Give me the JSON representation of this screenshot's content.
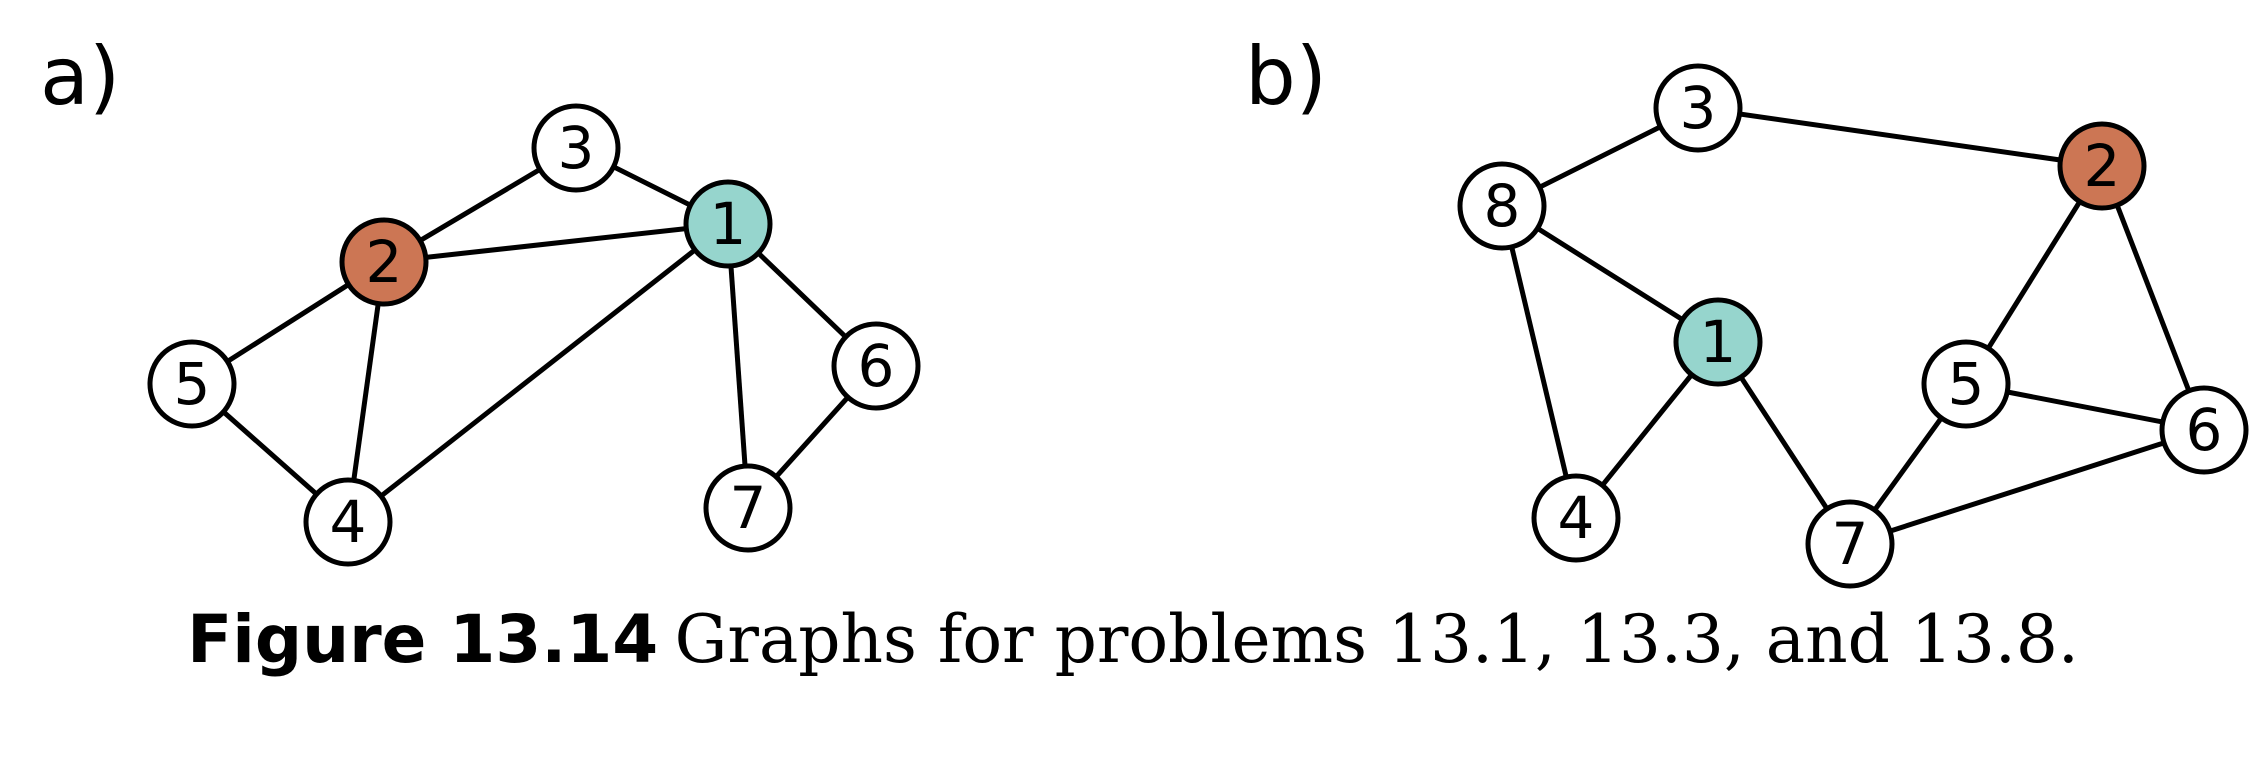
{
  "colors": {
    "teal": "#96d5cd",
    "orange": "#cc7654",
    "white": "#ffffff",
    "stroke": "#000000"
  },
  "panels": [
    {
      "label": "a)",
      "nodes": [
        {
          "id": "1",
          "label": "1",
          "color": "teal"
        },
        {
          "id": "2",
          "label": "2",
          "color": "orange"
        },
        {
          "id": "3",
          "label": "3",
          "color": "white"
        },
        {
          "id": "4",
          "label": "4",
          "color": "white"
        },
        {
          "id": "5",
          "label": "5",
          "color": "white"
        },
        {
          "id": "6",
          "label": "6",
          "color": "white"
        },
        {
          "id": "7",
          "label": "7",
          "color": "white"
        }
      ],
      "edges": [
        [
          "3",
          "1"
        ],
        [
          "3",
          "2"
        ],
        [
          "2",
          "1"
        ],
        [
          "2",
          "5"
        ],
        [
          "2",
          "4"
        ],
        [
          "5",
          "4"
        ],
        [
          "4",
          "1"
        ],
        [
          "1",
          "6"
        ],
        [
          "1",
          "7"
        ],
        [
          "6",
          "7"
        ]
      ]
    },
    {
      "label": "b)",
      "nodes": [
        {
          "id": "1",
          "label": "1",
          "color": "teal"
        },
        {
          "id": "2",
          "label": "2",
          "color": "orange"
        },
        {
          "id": "3",
          "label": "3",
          "color": "white"
        },
        {
          "id": "4",
          "label": "4",
          "color": "white"
        },
        {
          "id": "5",
          "label": "5",
          "color": "white"
        },
        {
          "id": "6",
          "label": "6",
          "color": "white"
        },
        {
          "id": "7",
          "label": "7",
          "color": "white"
        },
        {
          "id": "8",
          "label": "8",
          "color": "white"
        }
      ],
      "edges": [
        [
          "3",
          "8"
        ],
        [
          "3",
          "2"
        ],
        [
          "8",
          "1"
        ],
        [
          "8",
          "4"
        ],
        [
          "1",
          "4"
        ],
        [
          "1",
          "7"
        ],
        [
          "2",
          "5"
        ],
        [
          "2",
          "6"
        ],
        [
          "5",
          "6"
        ],
        [
          "5",
          "7"
        ],
        [
          "7",
          "6"
        ]
      ]
    }
  ],
  "caption": {
    "bold": "Figure 13.14",
    "text": "Graphs for problems 13.1,  13.3, and  13.8."
  }
}
